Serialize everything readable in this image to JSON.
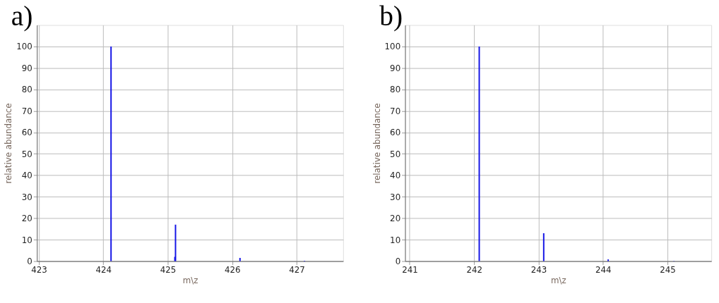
{
  "chart_data": [
    {
      "type": "bar",
      "title": "a)",
      "xlabel": "m\\z",
      "ylabel": "relative abundance",
      "series": [
        {
          "color": "#1414e6",
          "x": [
            424.12,
            425.11,
            425.12,
            426.12,
            427.12
          ],
          "values": [
            100,
            2,
            17,
            1.5,
            0.2
          ]
        }
      ],
      "xlim": [
        422.97,
        427.72
      ],
      "xticks": [
        423,
        424,
        425,
        426,
        427
      ],
      "ylim": [
        0,
        110
      ],
      "yticks": [
        0,
        10,
        20,
        30,
        40,
        50,
        60,
        70,
        80,
        90,
        100
      ],
      "grid": true
    },
    {
      "type": "bar",
      "title": "b)",
      "xlabel": "m\\z",
      "ylabel": "relative abundance",
      "series": [
        {
          "color": "#1414e6",
          "x": [
            242.08,
            243.08,
            244.08,
            245.1
          ],
          "values": [
            100,
            13,
            0.8,
            0.1
          ]
        }
      ],
      "xlim": [
        240.93,
        245.68
      ],
      "xticks": [
        241,
        242,
        243,
        244,
        245
      ],
      "ylim": [
        0,
        110
      ],
      "yticks": [
        0,
        10,
        20,
        30,
        40,
        50,
        60,
        70,
        80,
        90,
        100
      ],
      "grid": true
    }
  ]
}
